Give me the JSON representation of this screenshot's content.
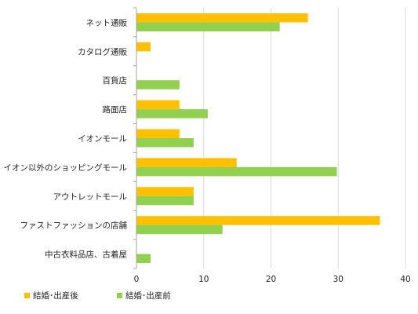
{
  "chart_data": {
    "type": "bar",
    "orientation": "horizontal",
    "categories": [
      "ネット通販",
      "カタログ通販",
      "百貨店",
      "路面店",
      "イオンモール",
      "イオン以外のショッピングモール",
      "アウトレットモール",
      "ファストファッションの店舗",
      "中古衣料品店、古着屋"
    ],
    "series": [
      {
        "name": "結婚･出産後",
        "color": "#FFC000",
        "values": [
          25.5,
          2.1,
          0,
          6.4,
          6.4,
          14.9,
          8.5,
          36.2,
          0
        ]
      },
      {
        "name": "結婚･出産前",
        "color": "#92D050",
        "values": [
          21.3,
          0,
          6.4,
          10.6,
          8.5,
          29.8,
          8.5,
          12.8,
          2.1
        ]
      }
    ],
    "xlim": [
      0,
      40
    ],
    "xticks": [
      0,
      10,
      20,
      30,
      40
    ],
    "grid": "vertical",
    "legend_position": "bottom-left",
    "title": "",
    "xlabel": "",
    "ylabel": ""
  }
}
